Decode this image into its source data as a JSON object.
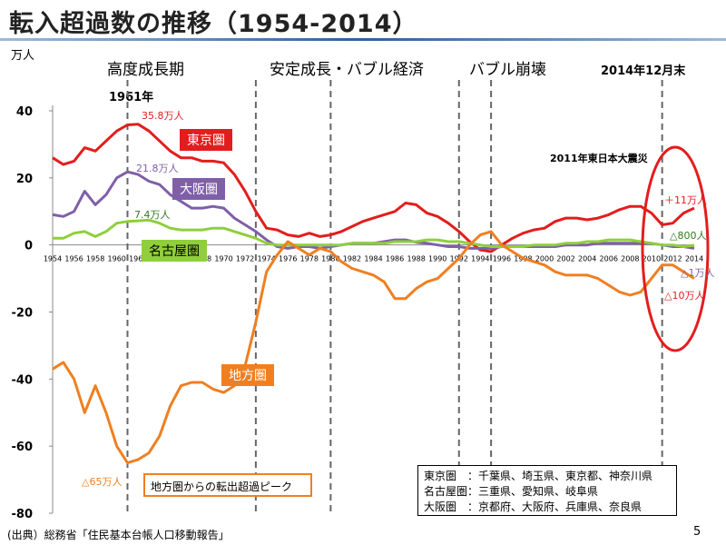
{
  "title": "転入超過数の推移（1954-2014）",
  "unit_label": "万人",
  "periods": [
    "高度成長期",
    "安定成長・バブル経済",
    "バブル崩壊"
  ],
  "top_notes": {
    "year_1961": "1961年",
    "dec_2014": "2014年12月末",
    "quake_2011": "2011年東日本大震災"
  },
  "callouts": {
    "tokyo_peak": "35.8万人",
    "osaka_peak": "21.8万人",
    "nagoya_peak": "7.4万人",
    "chiho_min": "△65万人",
    "tokyo_2014": "＋11万人",
    "nagoya_2014": "△800人",
    "osaka_2014": "△1万人",
    "chiho_2014": "△10万人"
  },
  "peak_box": "地方圏からの転出超過ピーク",
  "legend_lines": [
    "東京圏　：千葉県、埼玉県、東京都、神奈川県",
    "名古屋圏：三重県、愛知県、岐阜県",
    "大阪圏　：京都府、大阪府、兵庫県、奈良県"
  ],
  "source": "(出典）総務省「住民基本台帳人口移動報告」",
  "page_number": "5",
  "colors": {
    "tokyo": "#e31d1d",
    "osaka": "#7f5fa8",
    "nagoya": "#8fcf3c",
    "chiho": "#f07f21",
    "circle": "#e31d1d",
    "dashed": "#666666"
  },
  "chart_data": {
    "type": "line",
    "xlabel": "",
    "ylabel": "万人",
    "ylim": [
      -80,
      40
    ],
    "yticks": [
      40,
      20,
      0,
      -20,
      -40,
      -60,
      -80
    ],
    "x": [
      1954,
      1955,
      1956,
      1957,
      1958,
      1959,
      1960,
      1961,
      1962,
      1963,
      1964,
      1965,
      1966,
      1967,
      1968,
      1969,
      1970,
      1971,
      1972,
      1973,
      1974,
      1975,
      1976,
      1977,
      1978,
      1979,
      1980,
      1981,
      1982,
      1983,
      1984,
      1985,
      1986,
      1987,
      1988,
      1989,
      1990,
      1991,
      1992,
      1993,
      1994,
      1995,
      1996,
      1997,
      1998,
      1999,
      2000,
      2001,
      2002,
      2003,
      2004,
      2005,
      2006,
      2007,
      2008,
      2009,
      2010,
      2011,
      2012,
      2013,
      2014
    ],
    "xtick_labels": [
      "1954",
      "1956",
      "1958",
      "1960",
      "1962",
      "1964",
      "1966",
      "1968",
      "1970",
      "1972",
      "1974",
      "1976",
      "1978",
      "1980",
      "1982",
      "1984",
      "1986",
      "1988",
      "1990",
      "1992",
      "1994",
      "1996",
      "1998",
      "2000",
      "2002",
      "2004",
      "2006",
      "2008",
      "2010",
      "2012",
      "2014"
    ],
    "vlines": [
      1961,
      1973,
      1980,
      1992,
      1995,
      2011
    ],
    "series": [
      {
        "name": "東京圏",
        "values": [
          26,
          24,
          25,
          29,
          28,
          31,
          34,
          35.8,
          36,
          34,
          31,
          28,
          26,
          26,
          25,
          25,
          24.5,
          21,
          16,
          10,
          5,
          4.5,
          3,
          2.5,
          3.5,
          2.5,
          3,
          4,
          5.5,
          7,
          8,
          9,
          10,
          12.5,
          12,
          9.5,
          8.5,
          6.5,
          4,
          1,
          -1.5,
          -2,
          0,
          2,
          3.5,
          4.5,
          5,
          7,
          8,
          8,
          7.5,
          8,
          9,
          10.5,
          11.5,
          11.5,
          9.5,
          6,
          6.5,
          9.5,
          11
        ]
      },
      {
        "name": "大阪圏",
        "values": [
          9,
          8.5,
          10,
          16,
          12,
          15,
          20,
          21.8,
          21,
          19,
          18,
          15,
          13,
          11,
          11,
          11.5,
          11,
          8,
          6,
          4,
          1.5,
          -0.5,
          -1,
          -0.5,
          -0.5,
          -1,
          -0.5,
          0,
          0.5,
          0.5,
          0.5,
          1,
          1.5,
          1.5,
          0.8,
          0.5,
          0,
          -0.5,
          -0.5,
          -1,
          -1,
          -1,
          -0.5,
          -0.5,
          -0.5,
          -0.5,
          -0.5,
          -0.5,
          0,
          0,
          0,
          0.5,
          0.5,
          0.5,
          0.5,
          0.5,
          0.5,
          0,
          -0.5,
          -0.5,
          -1
        ]
      },
      {
        "name": "名古屋圏",
        "values": [
          2,
          2,
          3.5,
          4,
          2.5,
          4,
          6.5,
          7,
          7.2,
          7.4,
          6.5,
          5,
          4.5,
          4.5,
          4.5,
          5,
          5,
          4,
          3,
          2,
          0.5,
          0,
          0,
          0,
          0,
          0,
          0,
          0,
          0.5,
          0.5,
          0.5,
          0.5,
          1,
          1,
          1,
          1.5,
          1.5,
          1,
          1,
          0.5,
          0,
          -0.5,
          -0.5,
          -0.5,
          -0.5,
          0,
          0,
          0,
          0.5,
          0.5,
          1,
          1,
          1.5,
          1.5,
          1.5,
          1,
          0.5,
          0,
          0,
          -0.5,
          -0.08
        ]
      },
      {
        "name": "地方圏",
        "values": [
          -37,
          -35,
          -40,
          -50,
          -42,
          -50,
          -60,
          -65,
          -64,
          -62,
          -57,
          -48,
          -42,
          -41,
          -41,
          -43,
          -44,
          -42,
          -36,
          -23,
          -8,
          -3,
          1,
          -1,
          -3,
          -1,
          -2,
          -5,
          -7,
          -8,
          -9,
          -11,
          -16,
          -16,
          -13,
          -11,
          -10,
          -7,
          -4,
          0,
          3,
          4,
          0,
          -2,
          -4,
          -5,
          -6,
          -8,
          -9,
          -9,
          -9,
          -10,
          -12,
          -14,
          -15,
          -14,
          -10,
          -6,
          -6,
          -8,
          -10
        ]
      }
    ],
    "series_labels": [
      "東京圏",
      "大阪圏",
      "名古屋圏",
      "地方圏"
    ],
    "grid": false,
    "legend": "inline labels"
  }
}
